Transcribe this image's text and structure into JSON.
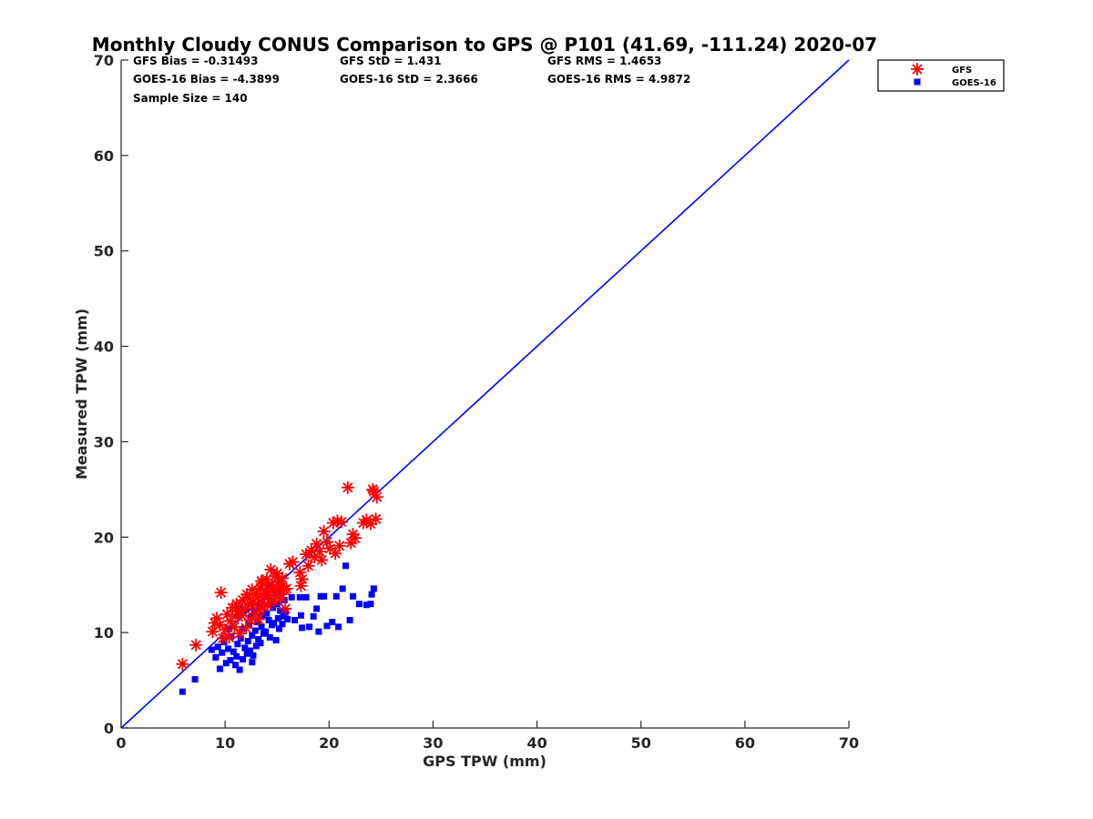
{
  "chart_data": {
    "type": "scatter",
    "title": "Monthly Cloudy CONUS Comparison to GPS @ P101 (41.69, -111.24) 2020-07",
    "xlabel": "GPS TPW (mm)",
    "ylabel": "Measured TPW (mm)",
    "xlim": [
      0,
      70
    ],
    "ylim": [
      0,
      70
    ],
    "xticks": [
      0,
      10,
      20,
      30,
      40,
      50,
      60,
      70
    ],
    "yticks": [
      0,
      10,
      20,
      30,
      40,
      50,
      60,
      70
    ],
    "grid": false,
    "legend_position": "top-right",
    "stats": [
      [
        "GFS Bias = -0.31493",
        "GFS StD = 1.431",
        "GFS RMS = 1.4653"
      ],
      [
        "GOES-16 Bias = -4.3899",
        "GOES-16 StD = 2.3666",
        "GOES-16 RMS = 4.9872"
      ],
      [
        "Sample Size = 140"
      ]
    ],
    "reference_line": {
      "from": [
        0,
        0
      ],
      "to": [
        70,
        70
      ],
      "color": "#0000ff"
    },
    "series": [
      {
        "name": "GFS",
        "marker": "asterisk",
        "color": "#ff0000",
        "points": [
          [
            5.9,
            6.7
          ],
          [
            7.2,
            8.7
          ],
          [
            8.8,
            10.1
          ],
          [
            9.0,
            11.0
          ],
          [
            9.2,
            11.5
          ],
          [
            9.5,
            10.8
          ],
          [
            9.6,
            14.2
          ],
          [
            9.8,
            9.4
          ],
          [
            10.0,
            10.3
          ],
          [
            10.2,
            11.9
          ],
          [
            10.4,
            9.5
          ],
          [
            10.5,
            11.2
          ],
          [
            10.7,
            12.6
          ],
          [
            10.9,
            10.6
          ],
          [
            11.0,
            11.7
          ],
          [
            11.1,
            13.0
          ],
          [
            11.3,
            12.2
          ],
          [
            11.4,
            9.9
          ],
          [
            11.6,
            11.8
          ],
          [
            11.7,
            13.4
          ],
          [
            11.9,
            12.5
          ],
          [
            12.0,
            10.5
          ],
          [
            12.1,
            14.0
          ],
          [
            12.2,
            13.6
          ],
          [
            12.4,
            11.3
          ],
          [
            12.5,
            12.9
          ],
          [
            12.6,
            14.5
          ],
          [
            12.7,
            13.2
          ],
          [
            12.9,
            12.0
          ],
          [
            13.0,
            14.1
          ],
          [
            13.1,
            13.7
          ],
          [
            13.2,
            11.4
          ],
          [
            13.3,
            12.4
          ],
          [
            13.4,
            14.6
          ],
          [
            13.5,
            13.1
          ],
          [
            13.6,
            15.2
          ],
          [
            13.7,
            12.7
          ],
          [
            13.8,
            13.8
          ],
          [
            13.9,
            14.4
          ],
          [
            14.0,
            15.6
          ],
          [
            14.1,
            12.9
          ],
          [
            14.2,
            14.2
          ],
          [
            14.3,
            13.5
          ],
          [
            14.4,
            16.6
          ],
          [
            14.5,
            15.0
          ],
          [
            14.6,
            14.7
          ],
          [
            14.7,
            13.3
          ],
          [
            14.8,
            15.9
          ],
          [
            14.9,
            14.3
          ],
          [
            15.0,
            16.2
          ],
          [
            15.1,
            13.9
          ],
          [
            15.2,
            15.4
          ],
          [
            15.3,
            14.8
          ],
          [
            15.4,
            13.6
          ],
          [
            15.5,
            15.7
          ],
          [
            15.7,
            14.5
          ],
          [
            15.8,
            12.5
          ],
          [
            16.2,
            17.2
          ],
          [
            16.5,
            17.4
          ],
          [
            17.2,
            16.3
          ],
          [
            17.3,
            14.9
          ],
          [
            17.4,
            15.6
          ],
          [
            17.8,
            18.2
          ],
          [
            18.0,
            17.0
          ],
          [
            18.3,
            18.6
          ],
          [
            18.6,
            17.9
          ],
          [
            18.8,
            19.3
          ],
          [
            19.1,
            18.5
          ],
          [
            19.3,
            17.6
          ],
          [
            19.5,
            20.6
          ],
          [
            19.8,
            19.5
          ],
          [
            20.1,
            18.8
          ],
          [
            20.4,
            21.5
          ],
          [
            20.6,
            18.3
          ],
          [
            20.8,
            21.7
          ],
          [
            21.0,
            19.1
          ],
          [
            21.2,
            21.6
          ],
          [
            21.8,
            25.2
          ],
          [
            22.1,
            19.4
          ],
          [
            22.3,
            20.3
          ],
          [
            22.5,
            19.9
          ],
          [
            23.3,
            21.5
          ],
          [
            23.6,
            21.8
          ],
          [
            24.0,
            21.4
          ],
          [
            24.2,
            25.0
          ],
          [
            24.3,
            24.8
          ],
          [
            24.5,
            21.9
          ],
          [
            24.6,
            24.2
          ],
          [
            15.9,
            14.6
          ],
          [
            13.5,
            15.4
          ]
        ]
      },
      {
        "name": "GOES-16",
        "marker": "square",
        "color": "#0000ff",
        "points": [
          [
            5.9,
            3.8
          ],
          [
            7.1,
            5.1
          ],
          [
            8.7,
            8.2
          ],
          [
            9.1,
            7.4
          ],
          [
            9.3,
            8.5
          ],
          [
            9.5,
            6.2
          ],
          [
            9.7,
            7.9
          ],
          [
            9.9,
            9.0
          ],
          [
            10.1,
            6.8
          ],
          [
            10.3,
            8.3
          ],
          [
            10.5,
            7.1
          ],
          [
            10.6,
            9.6
          ],
          [
            10.8,
            8.0
          ],
          [
            11.0,
            6.6
          ],
          [
            11.1,
            7.5
          ],
          [
            11.2,
            8.8
          ],
          [
            11.4,
            6.1
          ],
          [
            11.5,
            9.4
          ],
          [
            11.7,
            7.2
          ],
          [
            11.8,
            10.4
          ],
          [
            11.9,
            8.4
          ],
          [
            12.0,
            12.4
          ],
          [
            12.1,
            7.8
          ],
          [
            12.2,
            9.1
          ],
          [
            12.3,
            10.9
          ],
          [
            12.4,
            8.1
          ],
          [
            12.5,
            11.6
          ],
          [
            12.6,
            9.7
          ],
          [
            12.7,
            7.6
          ],
          [
            12.8,
            12.2
          ],
          [
            12.9,
            10.2
          ],
          [
            13.0,
            8.6
          ],
          [
            13.1,
            11.1
          ],
          [
            13.2,
            9.3
          ],
          [
            13.3,
            12.8
          ],
          [
            13.4,
            8.9
          ],
          [
            13.5,
            10.6
          ],
          [
            13.6,
            11.8
          ],
          [
            13.7,
            9.9
          ],
          [
            13.8,
            13.7
          ],
          [
            13.9,
            10.1
          ],
          [
            14.0,
            12.0
          ],
          [
            14.1,
            14.9
          ],
          [
            14.2,
            11.3
          ],
          [
            14.3,
            9.5
          ],
          [
            14.4,
            13.3
          ],
          [
            14.5,
            10.8
          ],
          [
            14.6,
            12.6
          ],
          [
            14.7,
            11.0
          ],
          [
            14.8,
            14.1
          ],
          [
            14.9,
            9.2
          ],
          [
            15.0,
            13.0
          ],
          [
            15.1,
            11.5
          ],
          [
            15.2,
            10.4
          ],
          [
            15.3,
            12.3
          ],
          [
            15.4,
            14.3
          ],
          [
            15.5,
            10.9
          ],
          [
            15.6,
            11.7
          ],
          [
            15.7,
            13.4
          ],
          [
            15.8,
            12.1
          ],
          [
            16.0,
            11.4
          ],
          [
            16.4,
            13.7
          ],
          [
            17.2,
            13.7
          ],
          [
            17.3,
            11.8
          ],
          [
            17.4,
            10.5
          ],
          [
            17.8,
            13.7
          ],
          [
            18.1,
            10.6
          ],
          [
            18.5,
            11.7
          ],
          [
            18.8,
            12.5
          ],
          [
            19.0,
            10.1
          ],
          [
            19.2,
            13.8
          ],
          [
            19.5,
            13.8
          ],
          [
            19.8,
            10.7
          ],
          [
            20.3,
            11.1
          ],
          [
            20.7,
            13.8
          ],
          [
            20.9,
            10.6
          ],
          [
            21.3,
            14.6
          ],
          [
            21.6,
            17.0
          ],
          [
            22.0,
            11.3
          ],
          [
            22.3,
            13.8
          ],
          [
            22.9,
            13.0
          ],
          [
            23.6,
            12.9
          ],
          [
            24.0,
            13.0
          ],
          [
            24.1,
            14.0
          ],
          [
            24.3,
            14.6
          ],
          [
            12.6,
            6.9
          ],
          [
            11.3,
            12.5
          ],
          [
            14.6,
            12.9
          ],
          [
            10.4,
            10.4
          ],
          [
            16.7,
            11.3
          ]
        ]
      }
    ]
  }
}
